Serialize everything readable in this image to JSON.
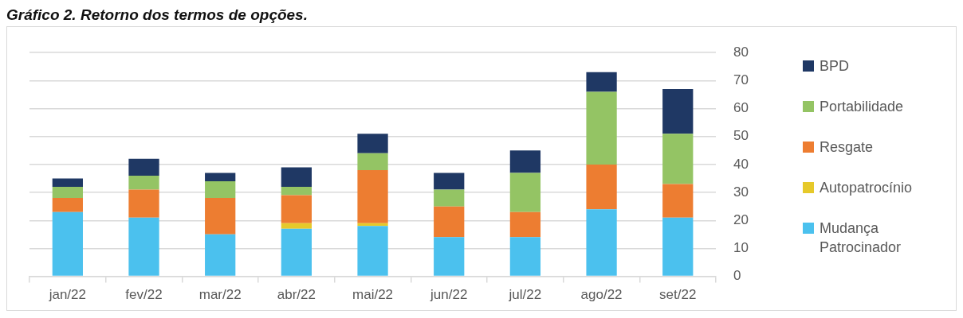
{
  "chart_data": {
    "type": "bar",
    "title": "Gráfico 2. Retorno dos termos de opções.",
    "categories": [
      "jan/22",
      "fev/22",
      "mar/22",
      "abr/22",
      "mai/22",
      "jun/22",
      "jul/22",
      "ago/22",
      "set/22"
    ],
    "stacked": true,
    "series": [
      {
        "name": "Mudança Patrocinador",
        "color": "#4bc1ee",
        "values": [
          23,
          21,
          15,
          17,
          18,
          14,
          14,
          24,
          21
        ]
      },
      {
        "name": "Autopatrocínio",
        "color": "#e6c92a",
        "values": [
          0,
          0,
          0,
          2,
          1,
          0,
          0,
          0,
          0
        ]
      },
      {
        "name": "Resgate",
        "color": "#ed7d31",
        "values": [
          5,
          10,
          13,
          10,
          19,
          11,
          9,
          16,
          12
        ]
      },
      {
        "name": "Portabilidade",
        "color": "#94c464",
        "values": [
          4,
          5,
          6,
          3,
          6,
          6,
          14,
          26,
          18
        ]
      },
      {
        "name": "BPD",
        "color": "#1f3864",
        "values": [
          3,
          6,
          3,
          7,
          7,
          6,
          8,
          7,
          16
        ]
      }
    ],
    "ylim": [
      0,
      80
    ],
    "yticks": [
      0,
      10,
      20,
      30,
      40,
      50,
      60,
      70,
      80
    ],
    "grid": "y",
    "legend": "right"
  }
}
